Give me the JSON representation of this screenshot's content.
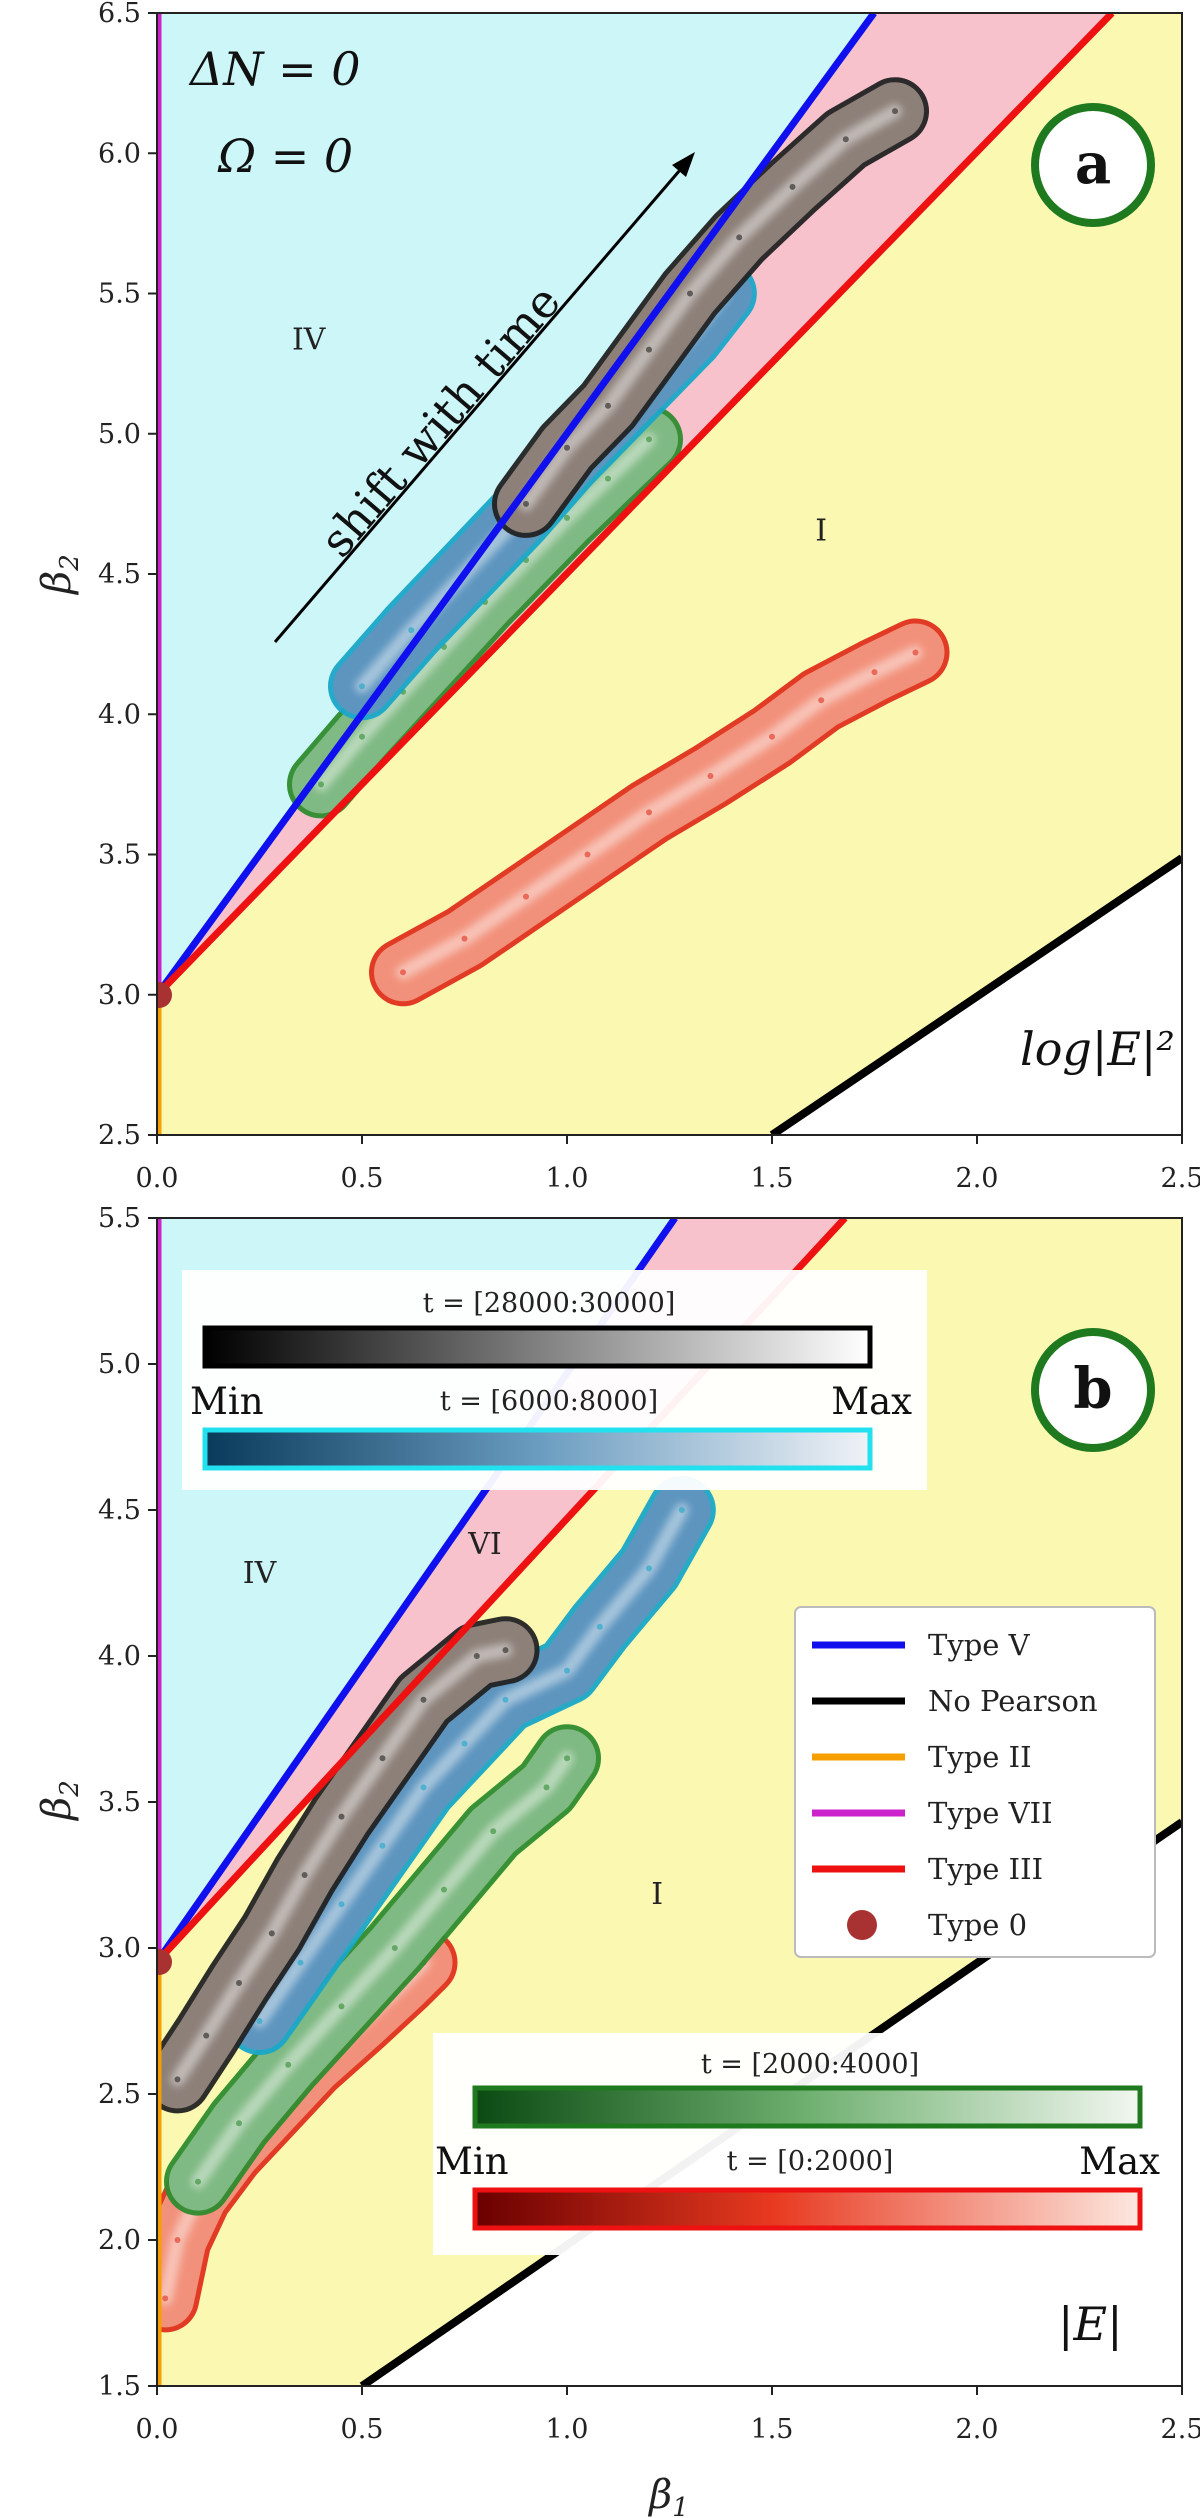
{
  "chart_data": [
    {
      "panel": "a",
      "type": "scatter",
      "title": "",
      "xlabel": "β1",
      "ylabel": "β2",
      "xlim": [
        0,
        2.5
      ],
      "ylim": [
        2.5,
        6.5
      ],
      "xticks": [
        "0.0",
        "0.5",
        "1.0",
        "1.5",
        "2.0",
        "2.5"
      ],
      "yticks": [
        "2.5",
        "3.0",
        "3.5",
        "4.0",
        "4.5",
        "5.0",
        "5.5",
        "6.0",
        "6.5"
      ],
      "ytick_values": [
        2.5,
        3.0,
        3.5,
        4.0,
        4.5,
        5.0,
        5.5,
        6.0,
        6.5
      ],
      "annotations": {
        "dn": "ΔN = 0",
        "omega": "Ω = 0",
        "shift": "shift with time",
        "quantity": "log|E|²",
        "badge": "a"
      },
      "regions": [
        {
          "label": "IV",
          "x": 0.37,
          "y": 5.3
        },
        {
          "label": "I",
          "x": 1.62,
          "y": 4.62
        }
      ],
      "series": [
        {
          "name": "t = [0:2000]",
          "color": "#e0301e",
          "points": [
            [
              0.6,
              3.08
            ],
            [
              0.75,
              3.2
            ],
            [
              0.9,
              3.35
            ],
            [
              1.05,
              3.5
            ],
            [
              1.2,
              3.65
            ],
            [
              1.35,
              3.78
            ],
            [
              1.5,
              3.92
            ],
            [
              1.62,
              4.05
            ],
            [
              1.75,
              4.15
            ],
            [
              1.85,
              4.22
            ]
          ]
        },
        {
          "name": "t = [2000:4000]",
          "color": "#2e8b2e",
          "points": [
            [
              0.4,
              3.75
            ],
            [
              0.5,
              3.92
            ],
            [
              0.6,
              4.08
            ],
            [
              0.7,
              4.24
            ],
            [
              0.8,
              4.4
            ],
            [
              0.9,
              4.55
            ],
            [
              1.0,
              4.7
            ],
            [
              1.1,
              4.84
            ],
            [
              1.2,
              4.98
            ]
          ]
        },
        {
          "name": "t = [6000:8000]",
          "color": "#1aa6c8",
          "points": [
            [
              0.5,
              4.1
            ],
            [
              0.62,
              4.3
            ],
            [
              0.75,
              4.5
            ],
            [
              0.88,
              4.7
            ],
            [
              1.0,
              4.9
            ],
            [
              1.1,
              5.05
            ],
            [
              1.2,
              5.2
            ],
            [
              1.3,
              5.35
            ],
            [
              1.38,
              5.5
            ]
          ]
        },
        {
          "name": "t = [28000:30000]",
          "color": "#222222",
          "points": [
            [
              0.9,
              4.75
            ],
            [
              1.0,
              4.95
            ],
            [
              1.1,
              5.1
            ],
            [
              1.2,
              5.3
            ],
            [
              1.3,
              5.5
            ],
            [
              1.42,
              5.7
            ],
            [
              1.55,
              5.88
            ],
            [
              1.68,
              6.05
            ],
            [
              1.8,
              6.15
            ]
          ]
        }
      ]
    },
    {
      "panel": "b",
      "type": "scatter",
      "title": "",
      "xlabel": "β1",
      "ylabel": "β2",
      "xlim": [
        0,
        2.5
      ],
      "ylim": [
        1.5,
        5.5
      ],
      "xticks": [
        "0.0",
        "0.5",
        "1.0",
        "1.5",
        "2.0",
        "2.5"
      ],
      "yticks": [
        "1.5",
        "2.0",
        "2.5",
        "3.0",
        "3.5",
        "4.0",
        "4.5",
        "5.0",
        "5.5"
      ],
      "ytick_values": [
        1.5,
        2.0,
        2.5,
        3.0,
        3.5,
        4.0,
        4.5,
        5.0,
        5.5
      ],
      "annotations": {
        "quantity": "|E|",
        "badge": "b"
      },
      "regions": [
        {
          "label": "IV",
          "x": 0.25,
          "y": 4.25
        },
        {
          "label": "VI",
          "x": 0.8,
          "y": 4.35
        },
        {
          "label": "I",
          "x": 1.22,
          "y": 3.15
        }
      ],
      "series": [
        {
          "name": "t = [0:2000]",
          "color": "#e0301e",
          "points": [
            [
              0.02,
              1.8
            ],
            [
              0.05,
              2.0
            ],
            [
              0.1,
              2.15
            ],
            [
              0.18,
              2.3
            ],
            [
              0.28,
              2.45
            ],
            [
              0.38,
              2.6
            ],
            [
              0.5,
              2.75
            ],
            [
              0.6,
              2.88
            ],
            [
              0.65,
              2.95
            ]
          ]
        },
        {
          "name": "t = [2000:4000]",
          "color": "#2e8b2e",
          "points": [
            [
              0.1,
              2.2
            ],
            [
              0.2,
              2.4
            ],
            [
              0.32,
              2.6
            ],
            [
              0.45,
              2.8
            ],
            [
              0.58,
              3.0
            ],
            [
              0.7,
              3.2
            ],
            [
              0.82,
              3.4
            ],
            [
              0.95,
              3.55
            ],
            [
              1.0,
              3.65
            ]
          ]
        },
        {
          "name": "t = [6000:8000]",
          "color": "#1aa6c8",
          "points": [
            [
              0.25,
              2.75
            ],
            [
              0.35,
              2.95
            ],
            [
              0.45,
              3.15
            ],
            [
              0.55,
              3.35
            ],
            [
              0.65,
              3.55
            ],
            [
              0.75,
              3.7
            ],
            [
              0.85,
              3.85
            ],
            [
              1.0,
              3.95
            ],
            [
              1.08,
              4.1
            ],
            [
              1.2,
              4.3
            ],
            [
              1.28,
              4.5
            ]
          ]
        },
        {
          "name": "t = [28000:30000]",
          "color": "#222222",
          "points": [
            [
              0.05,
              2.55
            ],
            [
              0.12,
              2.7
            ],
            [
              0.2,
              2.88
            ],
            [
              0.28,
              3.05
            ],
            [
              0.36,
              3.25
            ],
            [
              0.45,
              3.45
            ],
            [
              0.55,
              3.65
            ],
            [
              0.65,
              3.85
            ],
            [
              0.78,
              4.0
            ],
            [
              0.85,
              4.02
            ]
          ]
        }
      ],
      "legend": {
        "position": "center-right",
        "entries": [
          {
            "label": "Type V",
            "color": "#1010ee",
            "marker": "line"
          },
          {
            "label": "No Pearson",
            "color": "#000000",
            "marker": "line"
          },
          {
            "label": "Type II",
            "color": "#f5a000",
            "marker": "line"
          },
          {
            "label": "Type VII",
            "color": "#cc22cc",
            "marker": "line"
          },
          {
            "label": "Type III",
            "color": "#ee1111",
            "marker": "line"
          },
          {
            "label": "Type 0",
            "color": "#a83232",
            "marker": "dot"
          }
        ]
      },
      "colorbars": [
        {
          "title": "t = [28000:30000]",
          "from": "#000000",
          "to": "#ffffff",
          "border": "#000000"
        },
        {
          "title": "t = [6000:8000]",
          "from": "#0a3a5a",
          "to": "#f0f2f6",
          "border": "#22e0ee"
        },
        {
          "title": "t = [2000:4000]",
          "from": "#0b4a12",
          "to": "#f2f7f0",
          "border": "#1f7a1f"
        },
        {
          "title": "t = [0:2000]",
          "from": "#6a0000",
          "to": "#fde8e0",
          "border": "#ee1111"
        }
      ],
      "colorbar_labels": {
        "min": "Min",
        "max": "Max"
      }
    }
  ],
  "boundaries": {
    "type_v": {
      "label": "Type V",
      "color": "#1010ee"
    },
    "type_iii": {
      "label": "Type III",
      "color": "#ee1111"
    },
    "no_pearson": {
      "label": "No Pearson",
      "color": "#000000"
    },
    "type_vii": {
      "label": "Type VII",
      "color": "#cc22cc"
    },
    "type_ii": {
      "label": "Type II",
      "color": "#f5a000"
    },
    "type_0": {
      "label": "Type 0",
      "color": "#a83232",
      "beta1": 0,
      "beta2": 3
    }
  },
  "region_colors": {
    "iv": "#cdf6f8",
    "vi": "#f7c2cb",
    "i": "#fbf8b2",
    "no_pearson": "#ffffff"
  }
}
